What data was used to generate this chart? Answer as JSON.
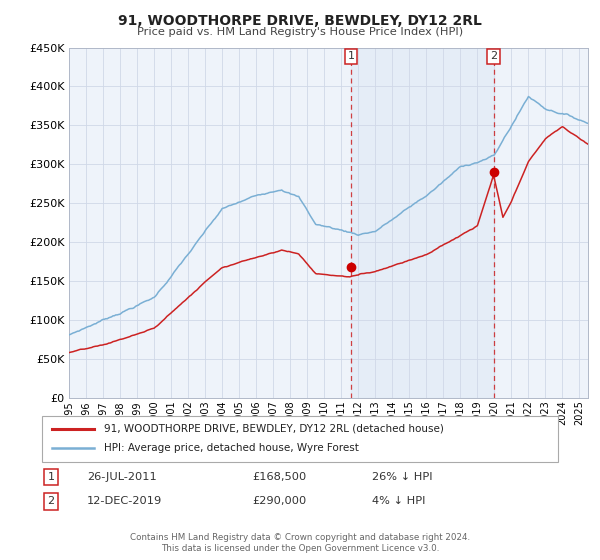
{
  "title": "91, WOODTHORPE DRIVE, BEWDLEY, DY12 2RL",
  "subtitle": "Price paid vs. HM Land Registry's House Price Index (HPI)",
  "hpi_color": "#7aafd4",
  "sale_color": "#cc2222",
  "sale_dot_color": "#cc0000",
  "background_color": "#ffffff",
  "plot_bg_color": "#eef3fa",
  "grid_color": "#d0d8e8",
  "ylim": [
    0,
    450000
  ],
  "yticks": [
    0,
    50000,
    100000,
    150000,
    200000,
    250000,
    300000,
    350000,
    400000,
    450000
  ],
  "xlim_start": 1995.0,
  "xlim_end": 2025.5,
  "sale1_x": 2011.57,
  "sale1_y": 168500,
  "sale1_label": "26-JUL-2011",
  "sale1_price": "£168,500",
  "sale1_pct": "26% ↓ HPI",
  "sale2_x": 2019.95,
  "sale2_y": 290000,
  "sale2_label": "12-DEC-2019",
  "sale2_price": "£290,000",
  "sale2_pct": "4% ↓ HPI",
  "legend_label1": "91, WOODTHORPE DRIVE, BEWDLEY, DY12 2RL (detached house)",
  "legend_label2": "HPI: Average price, detached house, Wyre Forest",
  "footer1": "Contains HM Land Registry data © Crown copyright and database right 2024.",
  "footer2": "This data is licensed under the Open Government Licence v3.0."
}
